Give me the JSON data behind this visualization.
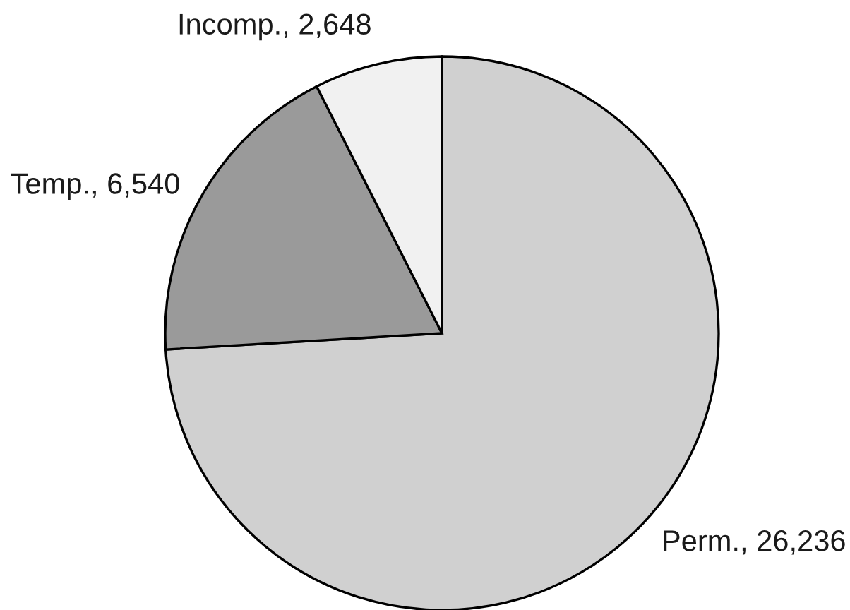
{
  "chart_data": {
    "type": "pie",
    "categories": [
      "Perm.",
      "Temp.",
      "Incomp."
    ],
    "values": [
      26236,
      6540,
      2648
    ],
    "colors": [
      "#d0d0d0",
      "#9a9a9a",
      "#f1f1f1"
    ],
    "value_labels": [
      ", 26,236",
      ", 6,540",
      ", 2,648"
    ]
  }
}
